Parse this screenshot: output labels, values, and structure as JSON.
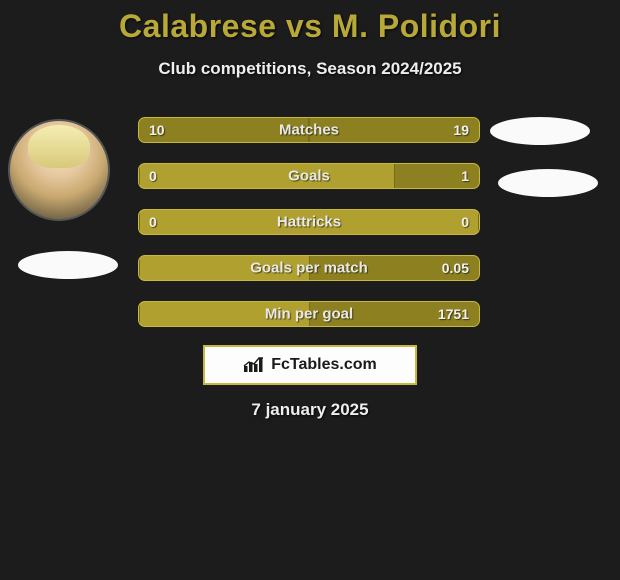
{
  "header": {
    "title": "Calabrese vs M. Polidori",
    "subtitle": "Club competitions, Season 2024/2025",
    "title_color": "#b8a838"
  },
  "stats": {
    "bar_bg": "#b0a030",
    "bar_border": "#c8b840",
    "fill_color": "#8c8020",
    "rows": [
      {
        "label": "Matches",
        "left": "10",
        "right": "19",
        "fill_left_pct": 100,
        "fill_right_pct": 100
      },
      {
        "label": "Goals",
        "left": "0",
        "right": "1",
        "fill_left_pct": 0,
        "fill_right_pct": 50
      },
      {
        "label": "Hattricks",
        "left": "0",
        "right": "0",
        "fill_left_pct": 0,
        "fill_right_pct": 0
      },
      {
        "label": "Goals per match",
        "left": "",
        "right": "0.05",
        "fill_left_pct": 0,
        "fill_right_pct": 100
      },
      {
        "label": "Min per goal",
        "left": "",
        "right": "1751",
        "fill_left_pct": 0,
        "fill_right_pct": 100
      }
    ]
  },
  "brand": {
    "label": "FcTables.com",
    "border_color": "#c8b840"
  },
  "date": "7 january 2025",
  "background_color": "#1c1c1c"
}
